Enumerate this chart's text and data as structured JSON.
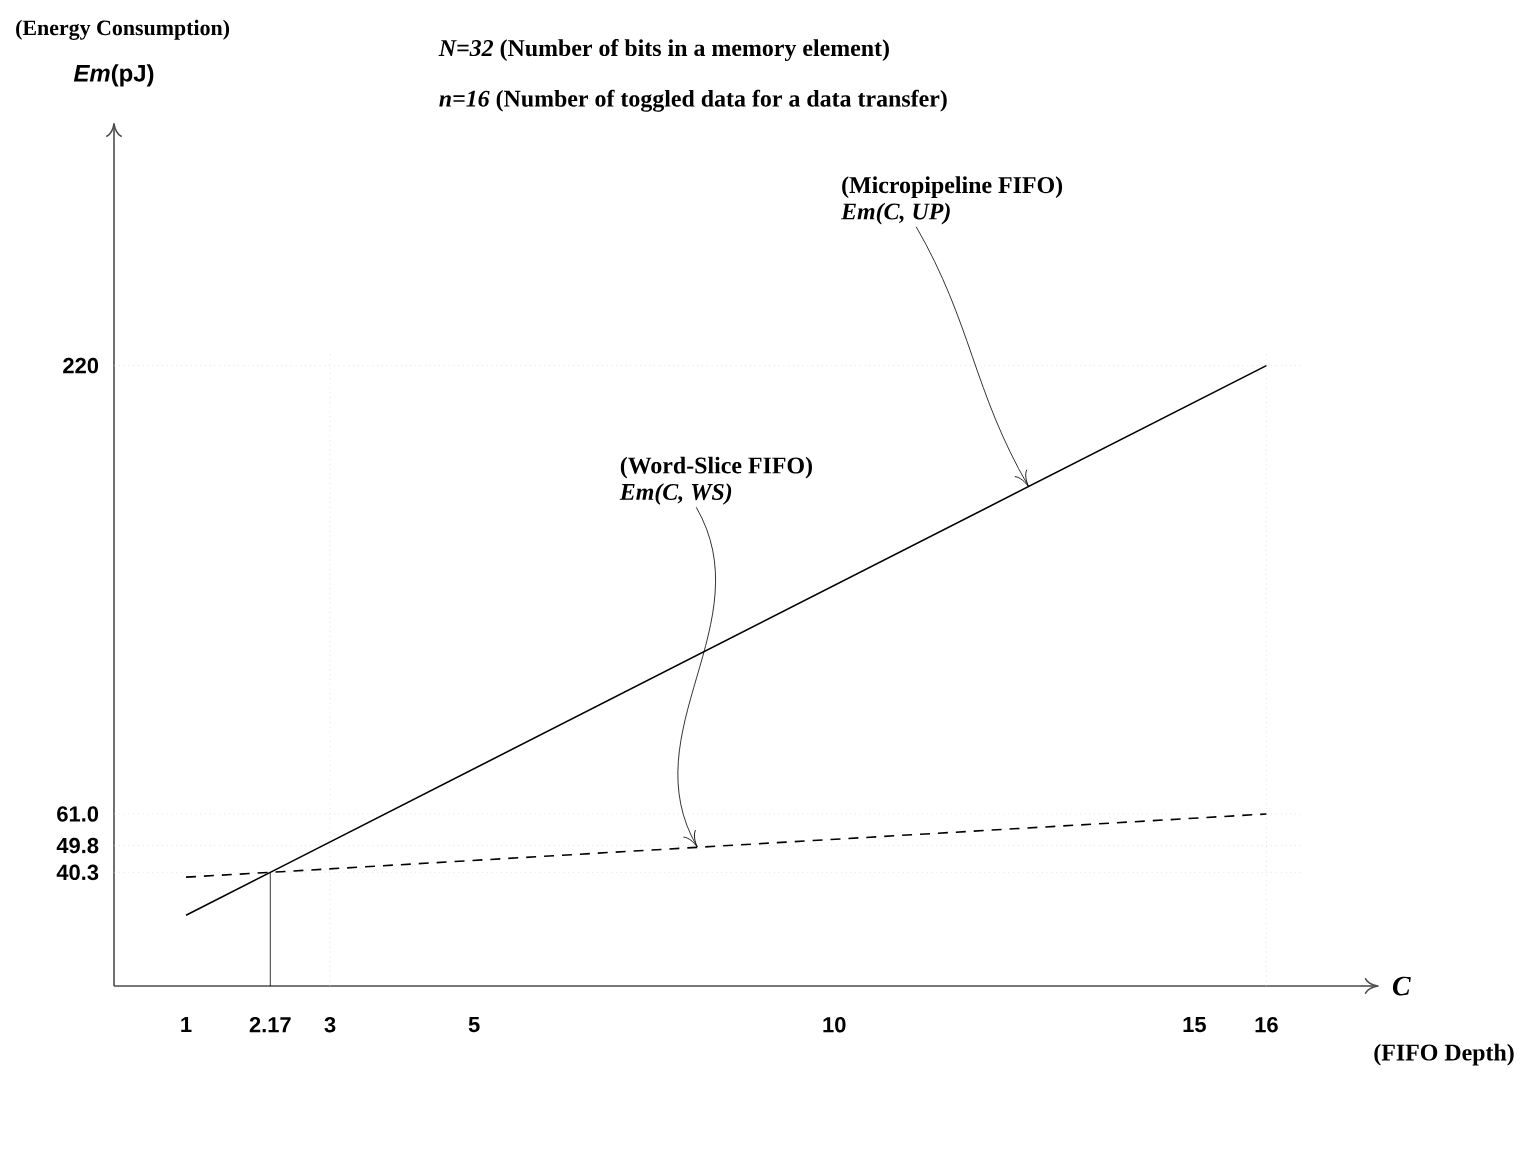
{
  "chart_data": {
    "type": "line",
    "title": "(Energy Consumption)",
    "ylabel": "*Em*(pJ)",
    "xlabel": "C",
    "annotations": [
      "*N=32* (Number of bits in a memory element)",
      "*n=16* (Number of toggled data for a data transfer)",
      "(FIFO Depth)",
      {
        "text": "Em(C, UP)",
        "x": 12.7,
        "y": 177
      },
      {
        "text": "Em(C, WS)",
        "x": 8.1,
        "y": 49.2
      }
    ],
    "series": [
      {
        "name": "(Micropipeline FIFO)",
        "color": "#000000",
        "line_style": "solid",
        "x": [
          1,
          2.17,
          16
        ],
        "values": [
          25.1,
          40.3,
          220
        ]
      },
      {
        "name": "(Word-Slice FIFO)",
        "color": "#000000",
        "line_style": "dashed",
        "x": [
          1,
          2.17,
          16
        ],
        "values": [
          38.6,
          40.3,
          61.0
        ]
      }
    ],
    "xlim": [
      0,
      17.3
    ],
    "ylim": [
      0,
      300
    ],
    "xticks": [
      1,
      2.17,
      3,
      5,
      10,
      15,
      16
    ],
    "yticks": [
      40.3,
      49.8,
      {
        "value": 61.0,
        "label": "61.0"
      },
      220
    ],
    "ref_lines": [
      {
        "axis": "y",
        "value": 220,
        "color": "#d0d0d0",
        "line_style": "dotted"
      },
      {
        "axis": "y",
        "value": 61.0,
        "color": "#d0d0d0",
        "line_style": "dotted"
      },
      {
        "axis": "y",
        "value": 49.8,
        "color": "#d0d0d0",
        "line_style": "dotted"
      },
      {
        "axis": "y",
        "value": 40.3,
        "color": "#d0d0d0",
        "line_style": "dotted"
      },
      {
        "axis": "x",
        "value": 2.17,
        "color": "#000000",
        "line_style": "solid"
      },
      {
        "axis": "x",
        "value": 3,
        "color": "#d0d0d0",
        "line_style": "dotted"
      },
      {
        "axis": "x",
        "value": 16,
        "color": "#d0d0d0",
        "line_style": "dotted"
      }
    ],
    "grid": false,
    "marker": "none"
  }
}
